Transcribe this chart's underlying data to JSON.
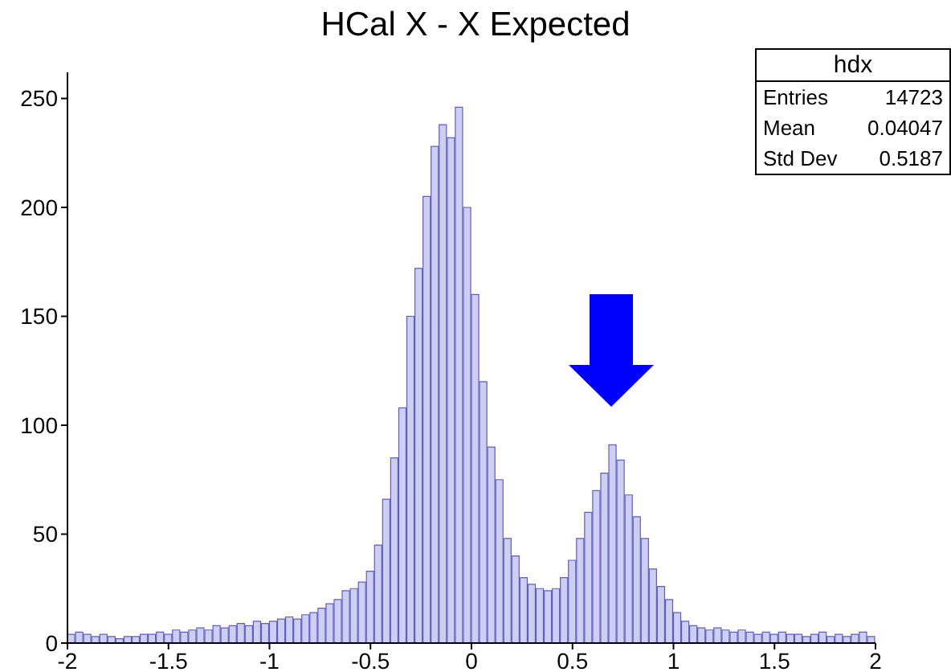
{
  "chart_data": {
    "type": "histogram",
    "title": "HCal X - X Expected",
    "bins": [
      -2,
      -1.96,
      -1.92,
      -1.88,
      -1.84,
      -1.8,
      -1.76,
      -1.72,
      -1.68,
      -1.64,
      -1.6,
      -1.56,
      -1.52,
      -1.48,
      -1.44,
      -1.4,
      -1.36,
      -1.32,
      -1.28,
      -1.24,
      -1.2,
      -1.16,
      -1.12,
      -1.08,
      -1.04,
      -1,
      -0.96,
      -0.92,
      -0.88,
      -0.84,
      -0.8,
      -0.76,
      -0.72,
      -0.68,
      -0.64,
      -0.6,
      -0.56,
      -0.52,
      -0.48,
      -0.44,
      -0.4,
      -0.36,
      -0.32,
      -0.28,
      -0.24,
      -0.2,
      -0.16,
      -0.12,
      -0.08,
      -0.04,
      0,
      0.04,
      0.08,
      0.12,
      0.16,
      0.2,
      0.24,
      0.28,
      0.32,
      0.36,
      0.4,
      0.44,
      0.48,
      0.52,
      0.56,
      0.6,
      0.64,
      0.68,
      0.72,
      0.76,
      0.8,
      0.84,
      0.88,
      0.92,
      0.96,
      1,
      1.04,
      1.08,
      1.12,
      1.16,
      1.2,
      1.24,
      1.28,
      1.32,
      1.36,
      1.4,
      1.44,
      1.48,
      1.52,
      1.56,
      1.6,
      1.64,
      1.68,
      1.72,
      1.76,
      1.8,
      1.84,
      1.88,
      1.92,
      1.96,
      2
    ],
    "values": [
      4,
      5,
      4,
      3,
      4,
      3,
      2,
      3,
      3,
      4,
      4,
      5,
      4,
      6,
      5,
      6,
      7,
      6,
      8,
      7,
      8,
      9,
      8,
      10,
      9,
      10,
      11,
      12,
      11,
      13,
      14,
      16,
      18,
      20,
      24,
      25,
      28,
      33,
      45,
      66,
      85,
      108,
      150,
      172,
      205,
      228,
      238,
      232,
      246,
      200,
      160,
      120,
      90,
      75,
      48,
      40,
      30,
      27,
      25,
      24,
      25,
      30,
      38,
      48,
      60,
      70,
      78,
      91,
      84,
      68,
      58,
      48,
      34,
      26,
      20,
      14,
      10,
      8,
      7,
      6,
      7,
      6,
      5,
      6,
      5,
      4,
      5,
      4,
      5,
      4,
      4,
      3,
      4,
      5,
      3,
      4,
      3,
      4,
      5,
      3
    ],
    "color": "#5c5ccc",
    "xlim": [
      -2,
      2
    ],
    "xticks": [
      -2,
      -1.5,
      -1,
      -0.5,
      0,
      0.5,
      1,
      1.5,
      2
    ],
    "ylim": [
      0,
      262
    ],
    "yticks": [
      0,
      50,
      100,
      150,
      200,
      250
    ],
    "grid": false,
    "legend": false,
    "annotations": [
      "hdx",
      "Entries",
      "14723",
      "Mean",
      "0.04047",
      "Std Dev",
      "0.5187"
    ]
  }
}
